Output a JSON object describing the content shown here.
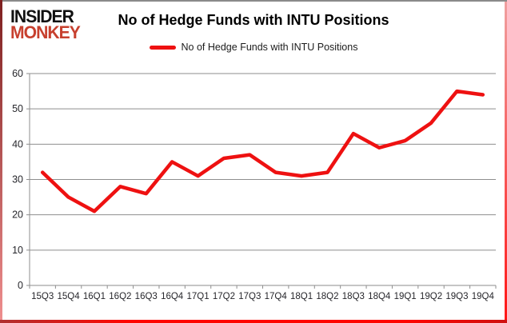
{
  "brand": {
    "line1": "INSIDER",
    "line2": "MONKEY",
    "monkey_color": "#c7402e",
    "insider_color": "#111111"
  },
  "header": {
    "title": "No of Hedge Funds with INTU Positions"
  },
  "legend": {
    "label": "No of Hedge Funds with INTU Positions"
  },
  "chart_data": {
    "type": "line",
    "title": "No of Hedge Funds with INTU Positions",
    "categories": [
      "15Q3",
      "15Q4",
      "16Q1",
      "16Q2",
      "16Q3",
      "16Q4",
      "17Q1",
      "17Q2",
      "17Q3",
      "17Q4",
      "18Q1",
      "18Q2",
      "18Q3",
      "18Q4",
      "19Q1",
      "19Q2",
      "19Q3",
      "19Q4"
    ],
    "values": [
      32,
      25,
      21,
      28,
      26,
      35,
      31,
      36,
      37,
      32,
      31,
      32,
      43,
      39,
      41,
      46,
      55,
      54
    ],
    "series_name": "No of Hedge Funds with INTU Positions",
    "xlabel": "",
    "ylabel": "",
    "ylim": [
      0,
      60
    ],
    "ytick_step": 10,
    "yticks": [
      0,
      10,
      20,
      30,
      40,
      50,
      60
    ],
    "grid": true,
    "legend_position": "top-center",
    "line_color": "#ee1111",
    "gridline_color": "#8e8e8e",
    "axis_line_color": "#8e8e8e",
    "axis_text_color": "#26262b"
  }
}
